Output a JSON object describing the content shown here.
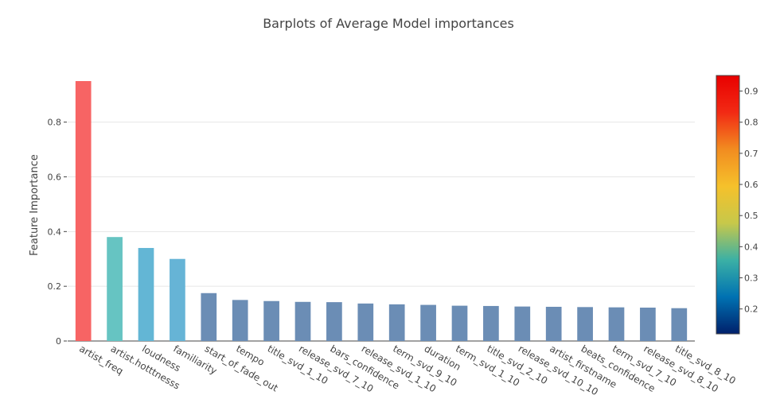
{
  "chart_data": {
    "type": "bar",
    "title": "Barplots of Average Model importances",
    "xlabel": "",
    "ylabel": "Feature Importance",
    "categories": [
      "artist_freq",
      "artist.hotttnesss",
      "loudness",
      "familiarity",
      "start_of_fade_out",
      "tempo",
      "title_svd_1_10",
      "release_svd_7_10",
      "bars_confidence",
      "release_svd_1_10",
      "term_svd_9_10",
      "duration",
      "term_svd_1_10",
      "title_svd_2_10",
      "release_svd_10_10",
      "artist_firstname",
      "beats_confidence",
      "term_svd_7_10",
      "release_svd_8_10",
      "title_svd_8_10"
    ],
    "values": [
      0.95,
      0.38,
      0.34,
      0.3,
      0.175,
      0.15,
      0.146,
      0.143,
      0.142,
      0.137,
      0.134,
      0.132,
      0.129,
      0.128,
      0.126,
      0.125,
      0.124,
      0.123,
      0.122,
      0.12
    ],
    "ylim": [
      0,
      0.95
    ],
    "yticks": [
      0,
      0.2,
      0.4,
      0.6,
      0.8
    ],
    "ytick_labels": [
      "0",
      "0.2",
      "0.4",
      "0.6",
      "0.8"
    ],
    "grid": true,
    "colorbar": {
      "range": [
        0.12,
        0.95
      ],
      "ticks": [
        0.2,
        0.3,
        0.4,
        0.5,
        0.6,
        0.7,
        0.8,
        0.9
      ],
      "tick_labels": [
        "0.2",
        "0.3",
        "0.4",
        "0.5",
        "0.6",
        "0.7",
        "0.8",
        "0.9"
      ],
      "colorscale": [
        "#00206b",
        "#0072b2",
        "#3bb0a5",
        "#c7c84a",
        "#f5c12b",
        "#f28c20",
        "#f22a14",
        "#e80000"
      ]
    },
    "bar_colors": [
      "#f76464",
      "#66c4c2",
      "#63b6d5",
      "#66b4d6",
      "#6b8db5",
      "#6b8db5",
      "#6b8db5",
      "#6b8db5",
      "#6b8db5",
      "#6b8db5",
      "#6b8db5",
      "#6b8db5",
      "#6b8db5",
      "#6b8db5",
      "#6b8db5",
      "#6b8db5",
      "#6b8db5",
      "#6b8db5",
      "#6b8db5",
      "#6b8db5"
    ]
  }
}
